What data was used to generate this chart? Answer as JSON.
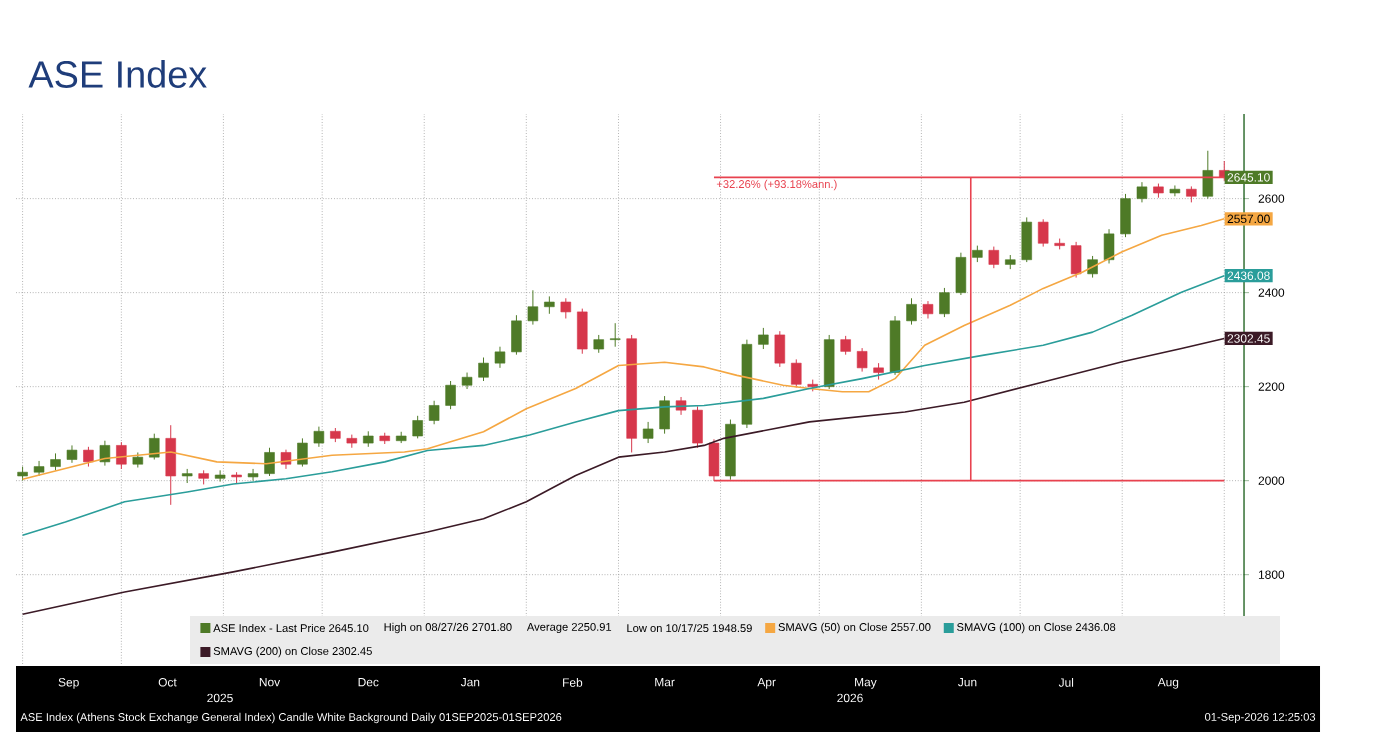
{
  "chart_data": {
    "type": "candlestick",
    "title": "ASE Index",
    "xlim": [
      "2025-08-30",
      "2026-09-07"
    ],
    "ylim": [
      1610,
      2780
    ],
    "yticks": [
      1800,
      2000,
      2200,
      2400,
      2600
    ],
    "xticks": [
      {
        "value": "2025-09-01",
        "label": null
      },
      {
        "value": "2025-10-01",
        "label": null
      },
      {
        "value": "2025-11-01",
        "label": null
      },
      {
        "value": "2025-12-01",
        "label": null
      },
      {
        "value": "2026-01-01",
        "label": null
      },
      {
        "value": "2026-02-01",
        "label": null
      },
      {
        "value": "2026-03-01",
        "label": null
      },
      {
        "value": "2026-04-01",
        "label": null
      },
      {
        "value": "2026-05-01",
        "label": null
      },
      {
        "value": "2026-06-01",
        "label": null
      },
      {
        "value": "2026-07-01",
        "label": null
      },
      {
        "value": "2026-08-01",
        "label": null
      },
      {
        "value": "2026-09-01",
        "label": null
      },
      {
        "value": "2025-09-15",
        "label": "Sep"
      },
      {
        "value": "2025-10-15",
        "label": "Oct"
      },
      {
        "value": "2025-11-15",
        "label": "Nov"
      },
      {
        "value": "2025-12-15",
        "label": "Dec"
      },
      {
        "value": "2026-01-15",
        "label": "Jan"
      },
      {
        "value": "2026-02-15",
        "label": "Feb"
      },
      {
        "value": "2026-03-15",
        "label": "Mar"
      },
      {
        "value": "2026-04-15",
        "label": "Apr"
      },
      {
        "value": "2026-05-15",
        "label": "May"
      },
      {
        "value": "2026-06-15",
        "label": "Jun"
      },
      {
        "value": "2026-07-15",
        "label": "Jul"
      },
      {
        "value": "2026-08-15",
        "label": "Aug"
      }
    ],
    "grid": true,
    "legend": "bottom",
    "series": [
      {
        "type": "candlestick",
        "name": "ASE Index - Last Price 2645.10",
        "color": "#4e7a27",
        "colors": [
          "#4e7a27",
          "#4e7a27",
          "#4e7a27",
          "#4e7a27",
          "#d6374b",
          "#4e7a27",
          "#d6374b",
          "#4e7a27",
          "#4e7a27",
          "#d6374b",
          "#4e7a27",
          "#d6374b",
          "#4e7a27",
          "#d6374b",
          "#4e7a27",
          "#4e7a27",
          "#d6374b",
          "#4e7a27",
          "#4e7a27",
          "#d6374b",
          "#d6374b",
          "#4e7a27",
          "#d6374b",
          "#4e7a27",
          "#4e7a27",
          "#4e7a27",
          "#4e7a27",
          "#4e7a27",
          "#4e7a27",
          "#4e7a27",
          "#4e7a27",
          "#4e7a27",
          "#4e7a27",
          "#d6374b",
          "#d6374b",
          "#4e7a27",
          "#4e7a27",
          "#d6374b",
          "#4e7a27",
          "#4e7a27",
          "#d6374b",
          "#d6374b",
          "#d6374b",
          "#4e7a27",
          "#4e7a27",
          "#4e7a27",
          "#d6374b",
          "#d6374b",
          "#d6374b",
          "#4e7a27",
          "#d6374b",
          "#d6374b",
          "#d6374b",
          "#4e7a27",
          "#4e7a27",
          "#d6374b",
          "#4e7a27",
          "#4e7a27",
          "#4e7a27",
          "#d6374b",
          "#4e7a27",
          "#4e7a27",
          "#d6374b",
          "#d6374b",
          "#d6374b",
          "#4e7a27",
          "#4e7a27",
          "#4e7a27",
          "#4e7a27",
          "#d6374b",
          "#4e7a27",
          "#d6374b",
          "#4e7a27",
          "#d6374b"
        ],
        "x": [
          "2025-09-01",
          "2025-09-06",
          "2025-09-11",
          "2025-09-16",
          "2025-09-21",
          "2025-09-26",
          "2025-10-01",
          "2025-10-06",
          "2025-10-11",
          "2025-10-16",
          "2025-10-21",
          "2025-10-26",
          "2025-10-31",
          "2025-11-05",
          "2025-11-10",
          "2025-11-15",
          "2025-11-20",
          "2025-11-25",
          "2025-11-30",
          "2025-12-05",
          "2025-12-10",
          "2025-12-15",
          "2025-12-20",
          "2025-12-25",
          "2025-12-30",
          "2026-01-04",
          "2026-01-09",
          "2026-01-14",
          "2026-01-19",
          "2026-01-24",
          "2026-01-29",
          "2026-02-03",
          "2026-02-08",
          "2026-02-13",
          "2026-02-18",
          "2026-02-23",
          "2026-02-28",
          "2026-03-05",
          "2026-03-10",
          "2026-03-15",
          "2026-03-20",
          "2026-03-25",
          "2026-03-30",
          "2026-04-04",
          "2026-04-09",
          "2026-04-14",
          "2026-04-19",
          "2026-04-24",
          "2026-04-29",
          "2026-05-04",
          "2026-05-09",
          "2026-05-14",
          "2026-05-19",
          "2026-05-24",
          "2026-05-29",
          "2026-06-03",
          "2026-06-08",
          "2026-06-13",
          "2026-06-18",
          "2026-06-23",
          "2026-06-28",
          "2026-07-03",
          "2026-07-08",
          "2026-07-13",
          "2026-07-18",
          "2026-07-23",
          "2026-07-28",
          "2026-08-02",
          "2026-08-07",
          "2026-08-12",
          "2026-08-17",
          "2026-08-22",
          "2026-08-27",
          "2026-09-01"
        ],
        "ohlc": [
          [
            2010,
            2030,
            2000,
            2018
          ],
          [
            2018,
            2042,
            2010,
            2030
          ],
          [
            2030,
            2058,
            2022,
            2045
          ],
          [
            2045,
            2075,
            2038,
            2065
          ],
          [
            2065,
            2072,
            2030,
            2040
          ],
          [
            2040,
            2085,
            2032,
            2075
          ],
          [
            2075,
            2082,
            2025,
            2035
          ],
          [
            2035,
            2060,
            2028,
            2050
          ],
          [
            2050,
            2100,
            2045,
            2090
          ],
          [
            2090,
            2118,
            1948.59,
            2010
          ],
          [
            2010,
            2025,
            1995,
            2015
          ],
          [
            2015,
            2022,
            1992,
            2005
          ],
          [
            2005,
            2022,
            1998,
            2012
          ],
          [
            2012,
            2018,
            1995,
            2008
          ],
          [
            2008,
            2025,
            2000,
            2015
          ],
          [
            2015,
            2070,
            2010,
            2060
          ],
          [
            2060,
            2066,
            2025,
            2035
          ],
          [
            2035,
            2090,
            2030,
            2080
          ],
          [
            2080,
            2115,
            2072,
            2105
          ],
          [
            2105,
            2112,
            2082,
            2090
          ],
          [
            2090,
            2098,
            2070,
            2080
          ],
          [
            2080,
            2105,
            2072,
            2095
          ],
          [
            2095,
            2102,
            2078,
            2085
          ],
          [
            2085,
            2104,
            2080,
            2095
          ],
          [
            2095,
            2138,
            2090,
            2128
          ],
          [
            2128,
            2170,
            2120,
            2160
          ],
          [
            2160,
            2212,
            2152,
            2203
          ],
          [
            2203,
            2230,
            2195,
            2220
          ],
          [
            2220,
            2262,
            2212,
            2250
          ],
          [
            2250,
            2285,
            2240,
            2274
          ],
          [
            2274,
            2352,
            2268,
            2340
          ],
          [
            2340,
            2405,
            2332,
            2370
          ],
          [
            2370,
            2392,
            2355,
            2380
          ],
          [
            2380,
            2388,
            2345,
            2359
          ],
          [
            2359,
            2366,
            2270,
            2280
          ],
          [
            2280,
            2310,
            2272,
            2300
          ],
          [
            2300,
            2335,
            2285,
            2302
          ],
          [
            2302,
            2310,
            2060,
            2090
          ],
          [
            2090,
            2125,
            2080,
            2110
          ],
          [
            2110,
            2180,
            2100,
            2170
          ],
          [
            2170,
            2178,
            2140,
            2150
          ],
          [
            2150,
            2158,
            2070,
            2080
          ],
          [
            2080,
            2088,
            2000,
            2010
          ],
          [
            2010,
            2130,
            2002,
            2120
          ],
          [
            2120,
            2300,
            2112,
            2290
          ],
          [
            2290,
            2325,
            2280,
            2310
          ],
          [
            2310,
            2318,
            2242,
            2250
          ],
          [
            2250,
            2258,
            2198,
            2205
          ],
          [
            2205,
            2215,
            2190,
            2200
          ],
          [
            2200,
            2310,
            2195,
            2300
          ],
          [
            2300,
            2308,
            2268,
            2275
          ],
          [
            2275,
            2282,
            2232,
            2240
          ],
          [
            2240,
            2250,
            2215,
            2230
          ],
          [
            2230,
            2350,
            2225,
            2340
          ],
          [
            2340,
            2388,
            2332,
            2375
          ],
          [
            2375,
            2382,
            2345,
            2355
          ],
          [
            2355,
            2410,
            2348,
            2400
          ],
          [
            2400,
            2485,
            2395,
            2475
          ],
          [
            2475,
            2500,
            2465,
            2490
          ],
          [
            2490,
            2498,
            2452,
            2460
          ],
          [
            2460,
            2480,
            2450,
            2470
          ],
          [
            2470,
            2560,
            2465,
            2550
          ],
          [
            2550,
            2556,
            2498,
            2505
          ],
          [
            2505,
            2515,
            2492,
            2500
          ],
          [
            2500,
            2508,
            2432,
            2440
          ],
          [
            2440,
            2478,
            2432,
            2470
          ],
          [
            2470,
            2535,
            2462,
            2525
          ],
          [
            2525,
            2610,
            2518,
            2600
          ],
          [
            2600,
            2635,
            2592,
            2625
          ],
          [
            2625,
            2632,
            2602,
            2612
          ],
          [
            2612,
            2628,
            2605,
            2620
          ],
          [
            2620,
            2626,
            2592,
            2605
          ],
          [
            2605,
            2701.8,
            2600,
            2660
          ],
          [
            2660,
            2680,
            2638,
            2645.1
          ]
        ],
        "value_labels": [
          null,
          null,
          null,
          null,
          null,
          null,
          null,
          null,
          null,
          null,
          null,
          null,
          null,
          null,
          null,
          null,
          null,
          null,
          null,
          null,
          null,
          null,
          null,
          null,
          null,
          null,
          null,
          null,
          null,
          null,
          null,
          null,
          null,
          null,
          null,
          null,
          null,
          null,
          null,
          null,
          null,
          null,
          null,
          null,
          null,
          null,
          null,
          null,
          null,
          null,
          null,
          null,
          null,
          null,
          null,
          null,
          null,
          null,
          null,
          null,
          null,
          null,
          null,
          null,
          null,
          null,
          null,
          null,
          null,
          null,
          null,
          null,
          null,
          "2645.10"
        ]
      },
      {
        "type": "line",
        "name": "SMAVG (50) on Close 2557.00",
        "color": "#f5a742",
        "x": [
          "2025-09-01",
          "2025-09-26",
          "2025-10-16",
          "2025-10-30",
          "2025-11-14",
          "2025-12-04",
          "2025-12-26",
          "2026-01-02",
          "2026-01-19",
          "2026-02-01",
          "2026-02-16",
          "2026-03-01",
          "2026-03-15",
          "2026-03-27",
          "2026-04-06",
          "2026-04-20",
          "2026-04-28",
          "2026-05-08",
          "2026-05-16",
          "2026-05-24",
          "2026-06-02",
          "2026-06-14",
          "2026-06-28",
          "2026-07-08",
          "2026-07-20",
          "2026-08-01",
          "2026-08-13",
          "2026-08-25",
          "2026-09-01"
        ],
        "values": [
          2003,
          2047,
          2061,
          2040,
          2036,
          2054,
          2061,
          2068,
          2104,
          2153,
          2196,
          2245,
          2252,
          2242,
          2224,
          2203,
          2196,
          2189,
          2189,
          2217,
          2288,
          2330,
          2373,
          2409,
          2444,
          2487,
          2522,
          2543,
          2557
        ],
        "value_labels": [
          null,
          null,
          null,
          null,
          null,
          null,
          null,
          null,
          null,
          null,
          null,
          null,
          null,
          null,
          null,
          null,
          null,
          null,
          null,
          null,
          null,
          null,
          null,
          null,
          null,
          null,
          null,
          null,
          "2557.00"
        ]
      },
      {
        "type": "line",
        "name": "SMAVG (100) on Close 2436.08",
        "color": "#2a9d9a",
        "x": [
          "2025-09-01",
          "2025-09-14",
          "2025-10-02",
          "2025-10-21",
          "2025-11-04",
          "2025-11-20",
          "2025-12-04",
          "2025-12-20",
          "2026-01-02",
          "2026-01-19",
          "2026-02-02",
          "2026-02-16",
          "2026-03-01",
          "2026-03-15",
          "2026-03-27",
          "2026-04-14",
          "2026-04-28",
          "2026-05-14",
          "2026-06-02",
          "2026-06-20",
          "2026-07-08",
          "2026-07-23",
          "2026-08-04",
          "2026-08-19",
          "2026-09-01"
        ],
        "values": [
          1884,
          1912,
          1955,
          1976,
          1993,
          2004,
          2019,
          2040,
          2064,
          2075,
          2097,
          2125,
          2149,
          2157,
          2160,
          2175,
          2196,
          2217,
          2245,
          2267,
          2288,
          2316,
          2352,
          2401,
          2436.08
        ],
        "value_labels": [
          null,
          null,
          null,
          null,
          null,
          null,
          null,
          null,
          null,
          null,
          null,
          null,
          null,
          null,
          null,
          null,
          null,
          null,
          null,
          null,
          null,
          null,
          null,
          null,
          "2436.08"
        ]
      },
      {
        "type": "line",
        "name": "SMAVG (200) on Close 2302.45",
        "color": "#3b1a26",
        "x": [
          "2025-09-01",
          "2025-10-02",
          "2025-11-04",
          "2025-12-04",
          "2026-01-02",
          "2026-01-19",
          "2026-02-01",
          "2026-02-16",
          "2026-03-01",
          "2026-03-15",
          "2026-03-27",
          "2026-04-02",
          "2026-04-28",
          "2026-05-27",
          "2026-06-14",
          "2026-07-08",
          "2026-08-01",
          "2026-08-19",
          "2026-09-01"
        ],
        "values": [
          1716,
          1763,
          1806,
          1848,
          1891,
          1919,
          1955,
          2011,
          2050,
          2061,
          2075,
          2090,
          2125,
          2146,
          2167,
          2210,
          2253,
          2281,
          2302.45
        ],
        "value_labels": [
          null,
          null,
          null,
          null,
          null,
          null,
          null,
          null,
          null,
          null,
          null,
          null,
          null,
          null,
          null,
          null,
          null,
          null,
          "2302.45"
        ]
      },
      {
        "type": "line",
        "color": "#e8424f",
        "x": [
          "2026-03-30",
          "2026-09-01"
        ],
        "values": [
          2000,
          2000
        ]
      },
      {
        "type": "line",
        "color": "#e8424f",
        "x": [
          "2026-03-30",
          "2026-09-01"
        ],
        "values": [
          2645.1,
          2645.1
        ]
      },
      {
        "type": "line",
        "color": "#e8424f",
        "x": [
          "2026-06-16",
          "2026-06-16"
        ],
        "values": [
          2000,
          2645.1
        ]
      }
    ],
    "annotations": [
      "High on 08/27/26 2701.80",
      "Average 2250.91",
      "Low on 10/17/25 1948.59",
      {
        "text": "+32.26% (+93.18%ann.)",
        "x": "2026-03-30",
        "y": 2645.1
      },
      "2025",
      "2026",
      "ASE Index (Athens Stock Exchange General Index) Candle White Background Daily 01SEP2025-01SEP2026",
      "01-Sep-2026 12:25:03"
    ]
  }
}
